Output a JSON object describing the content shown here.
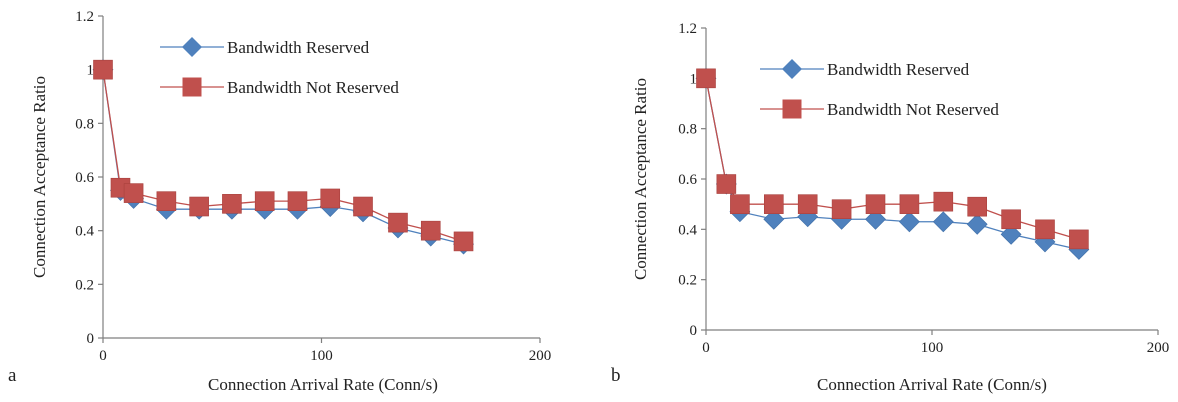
{
  "chart_data": [
    {
      "type": "line",
      "panel_label": "a",
      "xlabel": "Connection Arrival Rate (Conn/s)",
      "ylabel": "Connection Acceptance Ratio",
      "xlim": [
        0,
        200
      ],
      "ylim": [
        0,
        1.2
      ],
      "x_ticks": [
        "0",
        "100",
        "200"
      ],
      "y_ticks": [
        "0",
        "0.2",
        "0.4",
        "0.6",
        "0.8",
        "1",
        "1.2"
      ],
      "grid": false,
      "legend_position": "top-center",
      "series": [
        {
          "name": "Bandwidth Reserved",
          "marker": "diamond",
          "color": "#4f81bd",
          "x": [
            0,
            8,
            14,
            29,
            44,
            59,
            74,
            89,
            104,
            119,
            135,
            150,
            165
          ],
          "y": [
            1.0,
            0.55,
            0.52,
            0.48,
            0.48,
            0.48,
            0.48,
            0.48,
            0.49,
            0.47,
            0.41,
            0.38,
            0.35
          ]
        },
        {
          "name": "Bandwidth Not Reserved",
          "marker": "square",
          "color": "#c0504d",
          "x": [
            0,
            8,
            14,
            29,
            44,
            59,
            74,
            89,
            104,
            119,
            135,
            150,
            165
          ],
          "y": [
            1.0,
            0.56,
            0.54,
            0.51,
            0.49,
            0.5,
            0.51,
            0.51,
            0.52,
            0.49,
            0.43,
            0.4,
            0.36
          ]
        }
      ]
    },
    {
      "type": "line",
      "panel_label": "b",
      "xlabel": "Connection Arrival Rate (Conn/s)",
      "ylabel": "Connection Acceptance Ratio",
      "xlim": [
        0,
        200
      ],
      "ylim": [
        0,
        1.2
      ],
      "x_ticks": [
        "0",
        "100",
        "200"
      ],
      "y_ticks": [
        "0",
        "0.2",
        "0.4",
        "0.6",
        "0.8",
        "1",
        "1.2"
      ],
      "grid": false,
      "legend_position": "top-center",
      "series": [
        {
          "name": "Bandwidth Reserved",
          "marker": "diamond",
          "color": "#4f81bd",
          "x": [
            0,
            9,
            15,
            30,
            45,
            60,
            75,
            90,
            105,
            120,
            135,
            150,
            165
          ],
          "y": [
            1.0,
            0.58,
            0.47,
            0.44,
            0.45,
            0.44,
            0.44,
            0.43,
            0.43,
            0.42,
            0.38,
            0.35,
            0.32
          ]
        },
        {
          "name": "Bandwidth Not Reserved",
          "marker": "square",
          "color": "#c0504d",
          "x": [
            0,
            9,
            15,
            30,
            45,
            60,
            75,
            90,
            105,
            120,
            135,
            150,
            165
          ],
          "y": [
            1.0,
            0.58,
            0.5,
            0.5,
            0.5,
            0.48,
            0.5,
            0.5,
            0.51,
            0.49,
            0.44,
            0.4,
            0.36
          ]
        }
      ]
    }
  ]
}
